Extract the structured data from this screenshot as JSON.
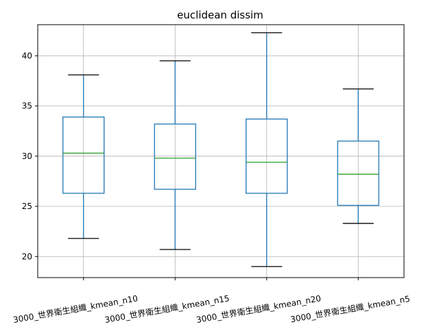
{
  "chart_data": {
    "type": "box",
    "title": "euclidean dissim",
    "xlabel": "",
    "ylabel": "",
    "ylim": [
      17.9,
      43.1
    ],
    "yticks": [
      20,
      25,
      30,
      35,
      40
    ],
    "grid": true,
    "categories": [
      "3000_世界衛生組織_kmean_n10",
      "3000_世界衛生組織_kmean_n15",
      "3000_世界衛生組織_kmean_n20",
      "3000_世界衛生組織_kmean_n5"
    ],
    "boxes": [
      {
        "whisker_low": 21.8,
        "q1": 26.3,
        "median": 30.3,
        "q3": 33.9,
        "whisker_high": 38.1
      },
      {
        "whisker_low": 20.7,
        "q1": 26.7,
        "median": 29.8,
        "q3": 33.2,
        "whisker_high": 39.5
      },
      {
        "whisker_low": 19.0,
        "q1": 26.3,
        "median": 29.4,
        "q3": 33.7,
        "whisker_high": 42.3
      },
      {
        "whisker_low": 23.3,
        "q1": 25.1,
        "median": 28.2,
        "q3": 31.5,
        "whisker_high": 36.7
      }
    ],
    "colors": {
      "box": "#1f77b4",
      "median": "#2ca02c",
      "whisker_cap": "#000000",
      "grid": "#b0b0b0"
    }
  }
}
